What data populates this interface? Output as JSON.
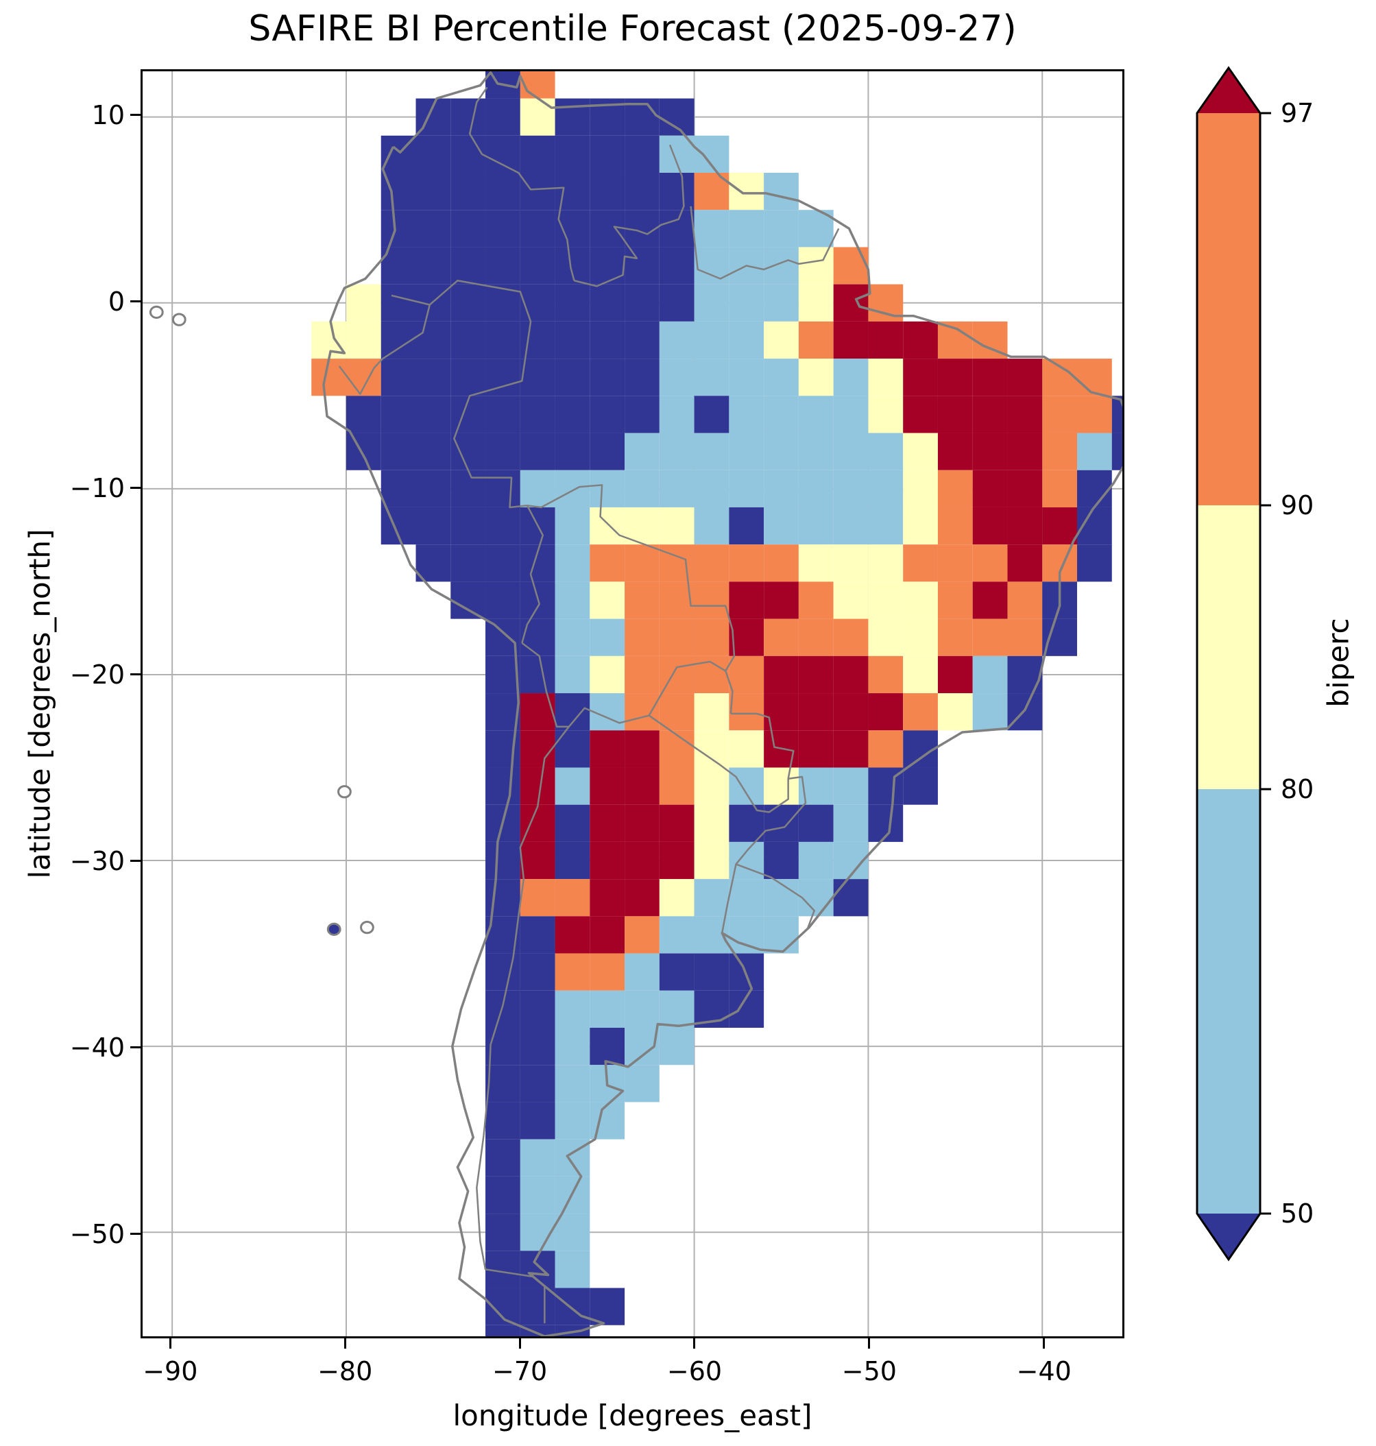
{
  "chart_data": {
    "type": "heatmap",
    "title": "SAFIRE BI Percentile Forecast (2025-09-27)",
    "xlabel": "longitude [degrees_east]",
    "ylabel": "latitude [degrees_north]",
    "x_range": [
      -91.7,
      -35.4
    ],
    "y_range": [
      -55.6,
      12.46
    ],
    "xtick_values": [
      -90,
      -80,
      -70,
      -60,
      -50,
      -40
    ],
    "xtick_labels": [
      "−90",
      "−80",
      "−70",
      "−60",
      "−50",
      "−40"
    ],
    "ytick_values": [
      10,
      0,
      -10,
      -20,
      -30,
      -40,
      -50
    ],
    "ytick_labels": [
      "10",
      "0",
      "−10",
      "−20",
      "−30",
      "−40",
      "−50"
    ],
    "grid_on": true,
    "grid_color": "#b0b0b0",
    "border_color": "#808080",
    "colorbar": {
      "label": "biperc",
      "boundaries": [
        50,
        80,
        90,
        97
      ],
      "ticks_top_to_bottom": [
        "97",
        "90",
        "80",
        "50"
      ],
      "extend": "both",
      "segments": [
        {
          "range": "<50",
          "color": "#313695"
        },
        {
          "range": "50-80",
          "color": "#92C5DE"
        },
        {
          "range": "80-90",
          "color": "#FFFFBE"
        },
        {
          "range": "90-97",
          "color": "#F5854E"
        },
        {
          "range": ">97",
          "color": "#A50026"
        }
      ]
    },
    "raster": {
      "description": "BI percentile classes on a coarse 2-degree grid; 1=<50 navy, 2=50-80 light blue, 3=80-90 pale yellow, 4=90-97 orange, 5=>97 dark red, .=no data",
      "lon_origin": -84,
      "lat_origin": 13,
      "cell_size_deg": 2,
      "class_colors": {
        "1": "#313695",
        "2": "#92C5DE",
        "3": "#FFFFBE",
        "4": "#F5854E",
        "5": "#A50026"
      },
      "rows": [
        "......14.................",
        "....11131111.............",
        "...1111111122............",
        "...111111111432..........",
        "...1111111112222.........",
        "...11111111122234........",
        "..3111111111222354.......",
        ".33111111112223455544....",
        ".44111111112222323555544.",
        "..11111111121222235555441",
        "..11111111222222223555421",
        "...111122222222222345541.",
        "...111112333212222345551.",
        "....11112444444333444541.",
        ".....111234445543334541..",
        "......11224445444334441..",
        "......1123444455543521...",
        "......1512443455554321...",
        "......1515543355541......",
        "......1525543232211......",
        "......151555311121.......",
        "......15155532122........",
        "......14455322221........",
        "......115542222..........",
        "......11442111...........",
        "......11222211...........",
        "......112122.............",
        "......11222..............",
        "......1122...............",
        "......122................",
        "......122................",
        "......122................",
        "......112................",
        "......1111...............",
        "......111................"
      ]
    },
    "geo": {
      "coastline": [
        [
          -77.3,
          8.4
        ],
        [
          -76.9,
          8.1
        ],
        [
          -75.6,
          9.4
        ],
        [
          -74.8,
          11.0
        ],
        [
          -72.3,
          11.7
        ],
        [
          -71.7,
          12.4
        ],
        [
          -71.3,
          11.8
        ],
        [
          -70.2,
          11.6
        ],
        [
          -70.0,
          12.2
        ],
        [
          -69.6,
          11.4
        ],
        [
          -68.2,
          10.5
        ],
        [
          -66.1,
          10.6
        ],
        [
          -63.8,
          10.7
        ],
        [
          -62.7,
          10.7
        ],
        [
          -62.2,
          10.1
        ],
        [
          -60.8,
          9.3
        ],
        [
          -60.0,
          8.4
        ],
        [
          -59.5,
          8.0
        ],
        [
          -58.5,
          6.8
        ],
        [
          -57.2,
          5.9
        ],
        [
          -55.9,
          5.9
        ],
        [
          -54.0,
          5.5
        ],
        [
          -52.3,
          4.7
        ],
        [
          -51.1,
          4.0
        ],
        [
          -50.0,
          1.8
        ],
        [
          -49.9,
          0.5
        ],
        [
          -50.7,
          0.2
        ],
        [
          -50.5,
          -0.2
        ],
        [
          -48.5,
          -0.7
        ],
        [
          -47.4,
          -0.7
        ],
        [
          -44.9,
          -1.4
        ],
        [
          -43.4,
          -2.3
        ],
        [
          -41.8,
          -2.9
        ],
        [
          -39.9,
          -2.9
        ],
        [
          -38.5,
          -3.7
        ],
        [
          -37.2,
          -4.8
        ],
        [
          -35.5,
          -5.2
        ],
        [
          -34.8,
          -6.9
        ],
        [
          -34.9,
          -8.1
        ],
        [
          -35.9,
          -9.7
        ],
        [
          -37.1,
          -11.1
        ],
        [
          -38.2,
          -12.8
        ],
        [
          -39.0,
          -14.5
        ],
        [
          -39.0,
          -16.3
        ],
        [
          -39.7,
          -18.3
        ],
        [
          -40.2,
          -20.3
        ],
        [
          -41.0,
          -21.9
        ],
        [
          -42.0,
          -22.9
        ],
        [
          -44.6,
          -23.1
        ],
        [
          -46.4,
          -24.1
        ],
        [
          -48.5,
          -25.5
        ],
        [
          -48.6,
          -26.9
        ],
        [
          -48.8,
          -28.5
        ],
        [
          -50.3,
          -30.0
        ],
        [
          -51.8,
          -31.7
        ],
        [
          -53.4,
          -33.6
        ],
        [
          -54.9,
          -34.9
        ],
        [
          -56.2,
          -34.8
        ],
        [
          -57.5,
          -34.4
        ],
        [
          -58.4,
          -33.9
        ],
        [
          -58.2,
          -34.3
        ],
        [
          -57.2,
          -35.7
        ],
        [
          -56.7,
          -36.9
        ],
        [
          -57.5,
          -38.1
        ],
        [
          -58.5,
          -38.6
        ],
        [
          -60.9,
          -38.9
        ],
        [
          -62.1,
          -38.8
        ],
        [
          -62.3,
          -40.0
        ],
        [
          -63.8,
          -41.1
        ],
        [
          -65.1,
          -40.8
        ],
        [
          -65.0,
          -42.1
        ],
        [
          -64.1,
          -42.4
        ],
        [
          -65.3,
          -43.4
        ],
        [
          -65.7,
          -45.0
        ],
        [
          -67.3,
          -45.9
        ],
        [
          -66.5,
          -47.0
        ],
        [
          -67.6,
          -49.0
        ],
        [
          -68.3,
          -50.1
        ],
        [
          -69.2,
          -51.6
        ],
        [
          -68.4,
          -52.3
        ],
        [
          -69.5,
          -52.2
        ],
        [
          -68.6,
          -52.9
        ],
        [
          -67.3,
          -53.9
        ],
        [
          -66.5,
          -54.5
        ],
        [
          -65.2,
          -54.9
        ],
        [
          -66.5,
          -55.3
        ],
        [
          -68.6,
          -55.6
        ],
        [
          -70.9,
          -54.7
        ],
        [
          -72.0,
          -53.6
        ],
        [
          -73.5,
          -52.5
        ],
        [
          -73.2,
          -50.8
        ],
        [
          -73.5,
          -49.5
        ],
        [
          -73.0,
          -47.8
        ],
        [
          -73.6,
          -46.5
        ],
        [
          -72.7,
          -44.9
        ],
        [
          -73.2,
          -43.3
        ],
        [
          -73.6,
          -41.8
        ],
        [
          -73.9,
          -40.0
        ],
        [
          -73.4,
          -38.0
        ],
        [
          -72.6,
          -35.8
        ],
        [
          -71.7,
          -33.5
        ],
        [
          -71.4,
          -31.0
        ],
        [
          -71.3,
          -29.0
        ],
        [
          -70.6,
          -26.5
        ],
        [
          -70.4,
          -24.0
        ],
        [
          -70.1,
          -21.5
        ],
        [
          -70.3,
          -18.3
        ],
        [
          -71.5,
          -17.3
        ],
        [
          -75.1,
          -15.4
        ],
        [
          -76.3,
          -14.1
        ],
        [
          -77.2,
          -12.1
        ],
        [
          -78.9,
          -8.4
        ],
        [
          -79.8,
          -6.9
        ],
        [
          -81.1,
          -6.1
        ],
        [
          -81.3,
          -4.4
        ],
        [
          -80.9,
          -2.6
        ],
        [
          -80.1,
          -2.7
        ],
        [
          -80.7,
          -1.9
        ],
        [
          -80.9,
          -1.0
        ],
        [
          -80.5,
          0.0
        ],
        [
          -80.1,
          0.8
        ],
        [
          -78.9,
          1.3
        ],
        [
          -77.7,
          2.6
        ],
        [
          -77.2,
          3.9
        ],
        [
          -77.4,
          6.0
        ],
        [
          -77.9,
          7.2
        ],
        [
          -77.3,
          8.4
        ]
      ],
      "borders": [
        [
          [
            -71.9,
            11.6
          ],
          [
            -72.5,
            10.8
          ],
          [
            -72.9,
            9.1
          ],
          [
            -72.2,
            8.0
          ],
          [
            -70.1,
            7.0
          ],
          [
            -69.4,
            6.1
          ],
          [
            -67.5,
            6.2
          ],
          [
            -67.8,
            4.5
          ],
          [
            -67.3,
            3.4
          ],
          [
            -67.1,
            1.9
          ],
          [
            -66.9,
            1.2
          ]
        ],
        [
          [
            -66.9,
            1.2
          ],
          [
            -65.6,
            0.9
          ],
          [
            -64.1,
            1.5
          ],
          [
            -64.0,
            2.5
          ],
          [
            -63.3,
            2.4
          ],
          [
            -64.2,
            3.6
          ],
          [
            -64.6,
            4.1
          ],
          [
            -63.3,
            3.9
          ],
          [
            -62.7,
            3.7
          ],
          [
            -61.9,
            4.2
          ],
          [
            -60.9,
            4.5
          ],
          [
            -60.6,
            5.2
          ],
          [
            -60.7,
            6.8
          ],
          [
            -61.4,
            8.5
          ]
        ],
        [
          [
            -60.2,
            5.2
          ],
          [
            -59.8,
            1.8
          ],
          [
            -58.5,
            1.3
          ],
          [
            -57.0,
            2.0
          ],
          [
            -56.0,
            1.8
          ],
          [
            -54.6,
            2.3
          ],
          [
            -54.0,
            2.1
          ],
          [
            -52.6,
            2.3
          ],
          [
            -51.7,
            4.0
          ]
        ],
        [
          [
            -77.4,
            0.4
          ],
          [
            -75.2,
            -0.1
          ],
          [
            -73.6,
            1.2
          ],
          [
            -70.0,
            0.6
          ],
          [
            -69.4,
            -1.0
          ],
          [
            -69.9,
            -4.2
          ],
          [
            -72.9,
            -5.0
          ],
          [
            -73.8,
            -7.3
          ],
          [
            -72.8,
            -9.4
          ],
          [
            -70.5,
            -9.4
          ],
          [
            -70.6,
            -11.0
          ],
          [
            -69.6,
            -10.9
          ]
        ],
        [
          [
            -80.4,
            -3.4
          ],
          [
            -79.2,
            -4.9
          ],
          [
            -78.4,
            -3.5
          ],
          [
            -77.9,
            -3.0
          ],
          [
            -75.6,
            -1.6
          ],
          [
            -75.2,
            -0.1
          ]
        ],
        [
          [
            -69.6,
            -10.9
          ],
          [
            -68.7,
            -12.5
          ],
          [
            -69.4,
            -14.6
          ],
          [
            -68.9,
            -16.2
          ],
          [
            -69.6,
            -17.3
          ],
          [
            -69.9,
            -18.3
          ]
        ],
        [
          [
            -69.6,
            -10.9
          ],
          [
            -68.8,
            -11.0
          ],
          [
            -66.6,
            -9.9
          ],
          [
            -65.3,
            -9.8
          ],
          [
            -65.4,
            -11.5
          ],
          [
            -64.3,
            -12.5
          ],
          [
            -60.5,
            -13.8
          ],
          [
            -60.2,
            -16.3
          ],
          [
            -58.2,
            -16.3
          ],
          [
            -57.8,
            -17.6
          ],
          [
            -57.7,
            -19.0
          ],
          [
            -58.2,
            -19.8
          ],
          [
            -57.8,
            -20.9
          ],
          [
            -57.9,
            -22.1
          ]
        ],
        [
          [
            -62.6,
            -22.2
          ],
          [
            -61.0,
            -19.6
          ],
          [
            -59.1,
            -19.3
          ],
          [
            -58.2,
            -19.8
          ]
        ],
        [
          [
            -69.9,
            -18.3
          ],
          [
            -68.9,
            -19.0
          ],
          [
            -68.5,
            -20.9
          ],
          [
            -67.9,
            -22.8
          ],
          [
            -67.2,
            -22.8
          ],
          [
            -66.3,
            -21.8
          ],
          [
            -64.3,
            -22.6
          ],
          [
            -62.6,
            -22.2
          ],
          [
            -60.0,
            -23.9
          ],
          [
            -58.6,
            -24.8
          ],
          [
            -57.6,
            -25.5
          ],
          [
            -56.4,
            -27.3
          ],
          [
            -55.7,
            -27.4
          ],
          [
            -54.6,
            -26.7
          ],
          [
            -54.6,
            -25.6
          ],
          [
            -53.8,
            -25.5
          ],
          [
            -53.6,
            -26.9
          ],
          [
            -54.8,
            -28.2
          ],
          [
            -55.9,
            -28.4
          ],
          [
            -56.9,
            -29.4
          ],
          [
            -57.6,
            -30.2
          ],
          [
            -58.1,
            -32.4
          ],
          [
            -58.4,
            -33.9
          ]
        ],
        [
          [
            -57.6,
            -30.2
          ],
          [
            -55.6,
            -30.9
          ],
          [
            -53.8,
            -32.0
          ],
          [
            -53.1,
            -32.7
          ],
          [
            -53.5,
            -33.7
          ]
        ],
        [
          [
            -67.2,
            -22.8
          ],
          [
            -68.6,
            -24.5
          ],
          [
            -69.0,
            -27.1
          ],
          [
            -70.0,
            -29.3
          ],
          [
            -69.8,
            -31.0
          ],
          [
            -70.1,
            -33.0
          ],
          [
            -70.4,
            -35.2
          ],
          [
            -71.0,
            -37.8
          ],
          [
            -71.7,
            -39.9
          ],
          [
            -71.8,
            -42.0
          ],
          [
            -72.1,
            -44.8
          ],
          [
            -72.5,
            -47.6
          ],
          [
            -72.3,
            -50.5
          ],
          [
            -72.0,
            -52.0
          ],
          [
            -69.2,
            -52.4
          ]
        ],
        [
          [
            -68.6,
            -52.9
          ],
          [
            -68.6,
            -54.9
          ]
        ],
        [
          [
            -54.6,
            -25.6
          ],
          [
            -54.3,
            -24.1
          ],
          [
            -55.4,
            -23.9
          ],
          [
            -55.7,
            -22.3
          ],
          [
            -56.4,
            -22.1
          ],
          [
            -57.9,
            -22.1
          ]
        ]
      ],
      "islands": [
        {
          "lon": -90.9,
          "lat": -0.5,
          "type": "outline"
        },
        {
          "lon": -89.6,
          "lat": -0.9,
          "type": "outline"
        },
        {
          "lon": -80.1,
          "lat": -26.3,
          "type": "outline"
        },
        {
          "lon": -78.8,
          "lat": -33.6,
          "type": "outline"
        },
        {
          "lon": -80.7,
          "lat": -33.7,
          "type": "navy"
        }
      ]
    }
  }
}
